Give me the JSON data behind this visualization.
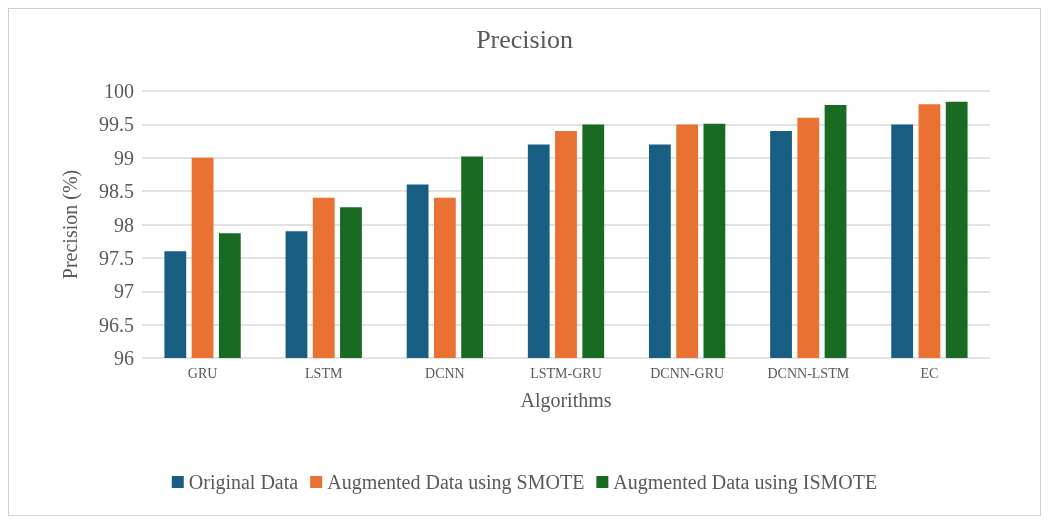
{
  "chart_data": {
    "type": "bar",
    "title": "Precision",
    "xlabel": "Algorithms",
    "ylabel": "Precision (%)",
    "categories": [
      "GRU",
      "LSTM",
      "DCNN",
      "LSTM-GRU",
      "DCNN-GRU",
      "DCNN-LSTM",
      "EC"
    ],
    "series": [
      {
        "name": "Original Data",
        "color": "#175e82",
        "values": [
          97.6,
          97.9,
          98.6,
          99.2,
          99.2,
          99.4,
          99.5
        ]
      },
      {
        "name": "Augmented Data using SMOTE",
        "color": "#e97132",
        "values": [
          99.0,
          98.4,
          98.4,
          99.4,
          99.5,
          99.6,
          99.8
        ]
      },
      {
        "name": "Augmented Data using ISMOTE",
        "color": "#196b24",
        "values": [
          97.87,
          98.26,
          99.02,
          99.5,
          99.51,
          99.79,
          99.84
        ]
      }
    ],
    "ylim": [
      96,
      100
    ],
    "yticks": [
      96,
      96.5,
      97,
      97.5,
      98,
      98.5,
      99,
      99.5,
      100
    ],
    "grid": "y",
    "legend": "bottom"
  }
}
